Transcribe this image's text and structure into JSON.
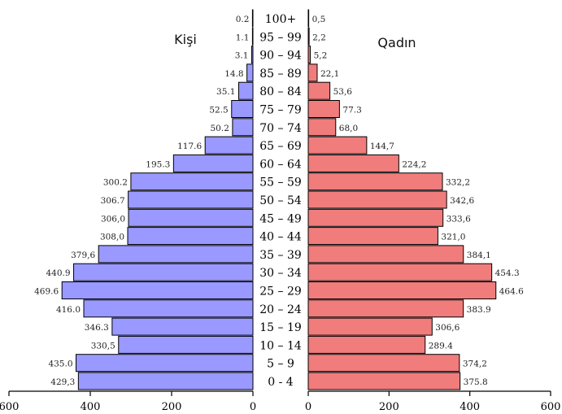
{
  "chart_data": {
    "type": "bar",
    "orientation": "horizontal",
    "layout": "population-pyramid",
    "categories": [
      "0 - 4",
      "5 – 9",
      "10 – 14",
      "15 – 19",
      "20 – 24",
      "25 – 29",
      "30 – 34",
      "35 – 39",
      "40 – 44",
      "45 – 49",
      "50 – 54",
      "55 – 59",
      "60 – 64",
      "65 – 69",
      "70 – 74",
      "75 – 79",
      "80 – 84",
      "85 – 89",
      "90 – 94",
      "95 – 99",
      "100+"
    ],
    "series": [
      {
        "name": "Kişi",
        "side": "left",
        "color": "#9999FF",
        "values": [
          429.3,
          435.0,
          330.5,
          346.3,
          416.0,
          469.6,
          440.9,
          379.6,
          308.0,
          306.0,
          306.7,
          300.2,
          195.3,
          117.6,
          50.2,
          52.5,
          35.1,
          14.8,
          3.1,
          1.1,
          0.2
        ],
        "labels": [
          "429,3",
          "435.0",
          "330,5",
          "346.3",
          "416.0",
          "469.6",
          "440.9",
          "379,6",
          "308,0",
          "306,0",
          "306.7",
          "300.2",
          "195.3",
          "117.6",
          "50.2",
          "52.5",
          "35.1",
          "14.8",
          "3.1",
          "1.1",
          "0.2"
        ]
      },
      {
        "name": "Qadın",
        "side": "right",
        "color": "#F07C7C",
        "values": [
          375.8,
          374.2,
          289.4,
          306.6,
          383.9,
          464.6,
          454.3,
          384.1,
          321.0,
          333.6,
          342.6,
          332.2,
          224.2,
          144.7,
          68.0,
          77.3,
          53.6,
          22.1,
          5.2,
          2.2,
          0.5
        ],
        "labels": [
          "375.8",
          "374,2",
          "289.4",
          "306,6",
          "383.9",
          "464.6",
          "454.3",
          "384,1",
          "321,0",
          "333,6",
          "342,6",
          "332,2",
          "224,2",
          "144,7",
          "68,0",
          "77.3",
          "53,6",
          "22,1",
          "5,2",
          "2,2",
          "0,5"
        ]
      }
    ],
    "xlim": [
      0,
      600
    ],
    "xticks": [
      600,
      400,
      200,
      0
    ],
    "xticks_right": [
      0,
      200,
      400,
      600
    ],
    "grid": false,
    "colors": {
      "male": "#9999FF",
      "female": "#F07C7C",
      "edge": "#000000"
    }
  }
}
